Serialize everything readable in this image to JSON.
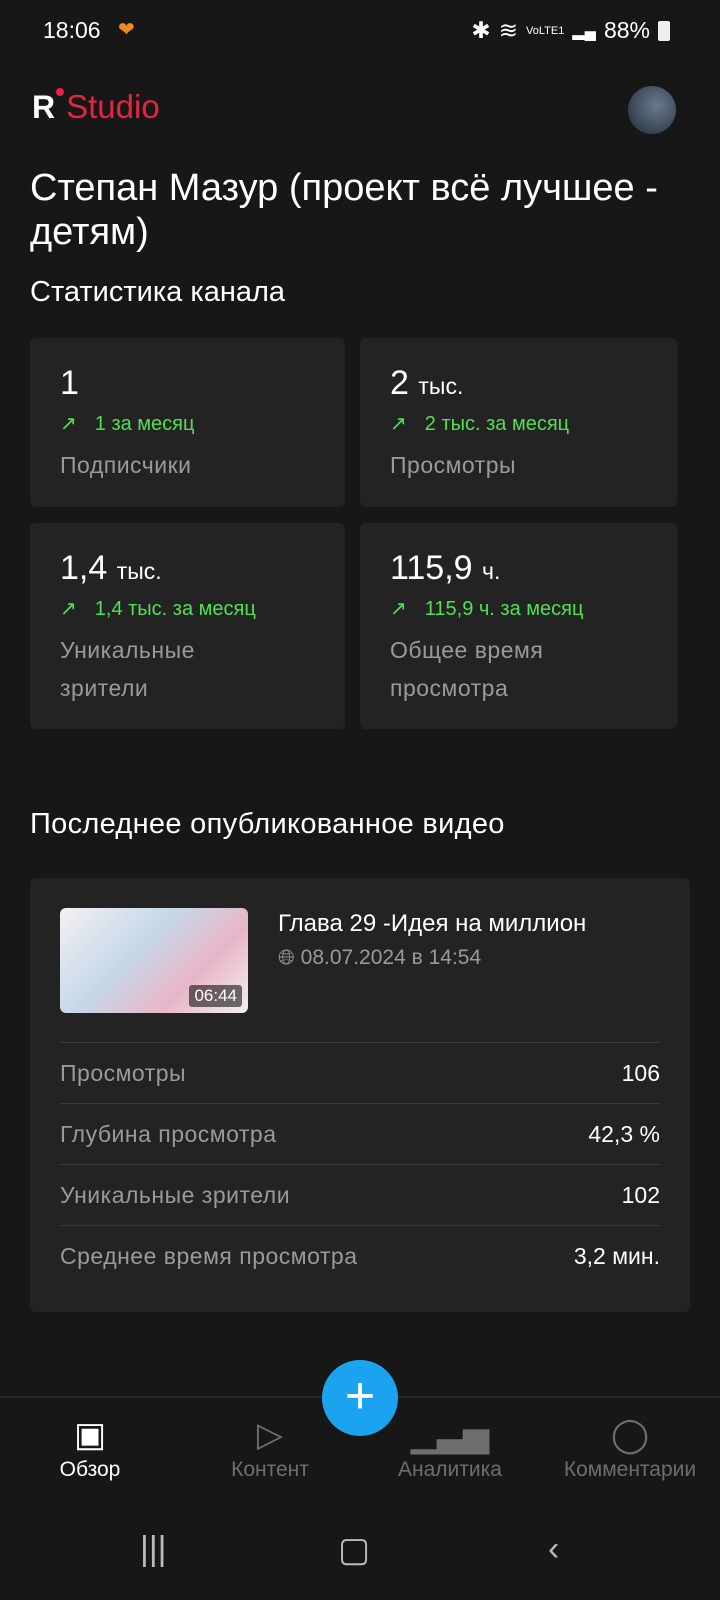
{
  "status": {
    "time": "18:06",
    "battery": "88%",
    "network": "VoLTE1"
  },
  "header": {
    "logo_r": "R",
    "logo_text": "Studio"
  },
  "channel": {
    "title": "Степан Мазур (проект всё лучшее - детям)",
    "subtitle": "Статистика канала"
  },
  "stats": [
    {
      "value": "1",
      "unit": "",
      "delta": "1 за месяц",
      "label": "Подписчики"
    },
    {
      "value": "2",
      "unit": "тыс.",
      "delta": "2 тыс. за месяц",
      "label": "Просмотры"
    },
    {
      "value": "1,4",
      "unit": "тыс.",
      "delta": "1,4 тыс. за месяц",
      "label": "Уникальные зрители"
    },
    {
      "value": "115,9",
      "unit": "ч.",
      "delta": "115,9 ч. за месяц",
      "label": "Общее время просмотра"
    }
  ],
  "latest": {
    "heading": "Последнее опубликованное видео",
    "title": "Глава 29 -Идея на миллион",
    "date": "08.07.2024 в 14:54",
    "duration": "06:44",
    "rows": [
      {
        "k": "Просмотры",
        "v": "106"
      },
      {
        "k": "Глубина просмотра",
        "v": "42,3 %"
      },
      {
        "k": "Уникальные зрители",
        "v": "102"
      },
      {
        "k": "Среднее время просмотра",
        "v": "3,2 мин."
      }
    ]
  },
  "nav": {
    "fab": "+",
    "tabs": [
      {
        "label": "Обзор",
        "icon": "grid-icon"
      },
      {
        "label": "Контент",
        "icon": "play-icon"
      },
      {
        "label": "Аналитика",
        "icon": "bar-chart-icon"
      },
      {
        "label": "Комментарии",
        "icon": "comment-icon"
      }
    ]
  },
  "colors": {
    "accent": "#1ca3f0",
    "brand": "#e8233f",
    "positive": "#52e052"
  }
}
